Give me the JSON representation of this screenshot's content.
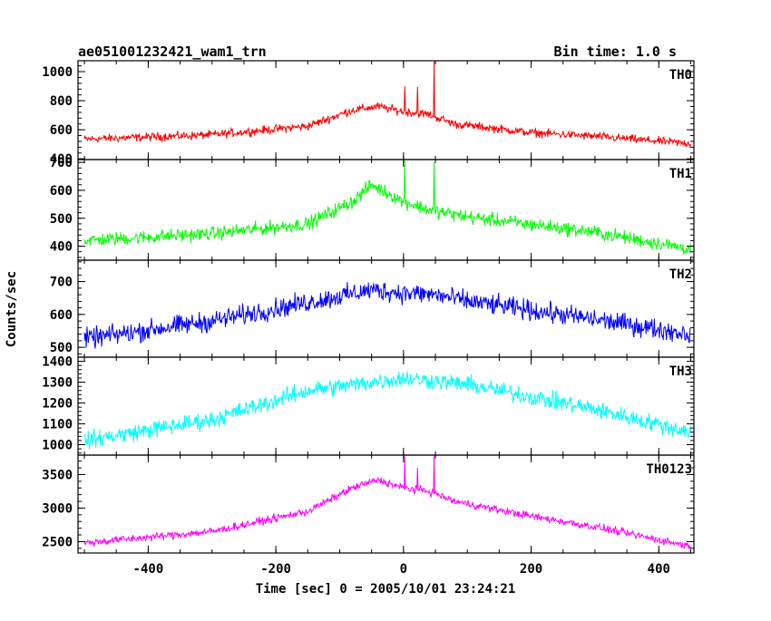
{
  "chart_data": {
    "type": "line",
    "title": "ae051001232421_wam1_trn",
    "bin_time_label": "Bin time: 1.0 s",
    "xlabel": "Time [sec] 0 = 2005/10/01 23:24:21",
    "ylabel": "Counts/sec",
    "xlim": [
      -510,
      455
    ],
    "x_ticks": [
      "-400",
      "-200",
      "0",
      "200",
      "400"
    ],
    "x_tick_values": [
      -400,
      -200,
      0,
      200,
      400
    ],
    "grid": false,
    "panels": [
      {
        "name": "TH0",
        "color": "#ff0000",
        "ylim": [
          395,
          1075
        ],
        "y_ticks": [
          "400",
          "600",
          "800",
          "1000"
        ],
        "y_tick_values": [
          400,
          600,
          800,
          1000
        ],
        "profile": {
          "x": [
            -500,
            -300,
            -150,
            -80,
            -40,
            0,
            40,
            80,
            200,
            300,
            450
          ],
          "y": [
            535,
            565,
            625,
            735,
            760,
            725,
            705,
            640,
            580,
            555,
            505
          ]
        },
        "noise": 45,
        "spikes": [
          {
            "x": 2,
            "y": 900
          },
          {
            "x": 22,
            "y": 895
          },
          {
            "x": 48,
            "y": 1070
          }
        ]
      },
      {
        "name": "TH1",
        "color": "#00ff00",
        "ylim": [
          350,
          710
        ],
        "y_ticks": [
          "400",
          "500",
          "600",
          "700"
        ],
        "y_tick_values": [
          400,
          500,
          600,
          700
        ],
        "profile": {
          "x": [
            -500,
            -300,
            -150,
            -80,
            -50,
            0,
            40,
            100,
            300,
            450
          ],
          "y": [
            420,
            445,
            480,
            560,
            620,
            560,
            530,
            505,
            450,
            390
          ]
        },
        "noise": 38,
        "spikes": [
          {
            "x": 2,
            "y": 705
          },
          {
            "x": 48,
            "y": 700
          }
        ]
      },
      {
        "name": "TH2",
        "color": "#0000ff",
        "ylim": [
          470,
          765
        ],
        "y_ticks": [
          "500",
          "600",
          "700"
        ],
        "y_tick_values": [
          500,
          600,
          700
        ],
        "profile": {
          "x": [
            -500,
            -300,
            -100,
            -50,
            0,
            50,
            100,
            300,
            450
          ],
          "y": [
            525,
            580,
            655,
            675,
            665,
            660,
            640,
            585,
            540
          ]
        },
        "noise": 48,
        "spikes": []
      },
      {
        "name": "TH3",
        "color": "#00ffff",
        "ylim": [
          950,
          1420
        ],
        "y_ticks": [
          "1000",
          "1100",
          "1200",
          "1300",
          "1400"
        ],
        "y_tick_values": [
          1000,
          1100,
          1200,
          1300,
          1400
        ],
        "profile": {
          "x": [
            -500,
            -300,
            -150,
            0,
            100,
            300,
            450
          ],
          "y": [
            1020,
            1120,
            1260,
            1320,
            1290,
            1170,
            1060
          ]
        },
        "noise": 65,
        "spikes": []
      },
      {
        "name": "TH0123",
        "color": "#ff00ff",
        "ylim": [
          2330,
          3790
        ],
        "y_ticks": [
          "2500",
          "3000",
          "3500"
        ],
        "y_tick_values": [
          2500,
          3000,
          3500
        ],
        "profile": {
          "x": [
            -500,
            -300,
            -150,
            -80,
            -40,
            0,
            40,
            80,
            200,
            300,
            450
          ],
          "y": [
            2480,
            2650,
            2950,
            3300,
            3420,
            3300,
            3250,
            3100,
            2880,
            2720,
            2430
          ]
        },
        "noise": 90,
        "spikes": [
          {
            "x": 2,
            "y": 3770
          },
          {
            "x": 22,
            "y": 3600
          },
          {
            "x": 48,
            "y": 3780
          }
        ]
      }
    ]
  }
}
